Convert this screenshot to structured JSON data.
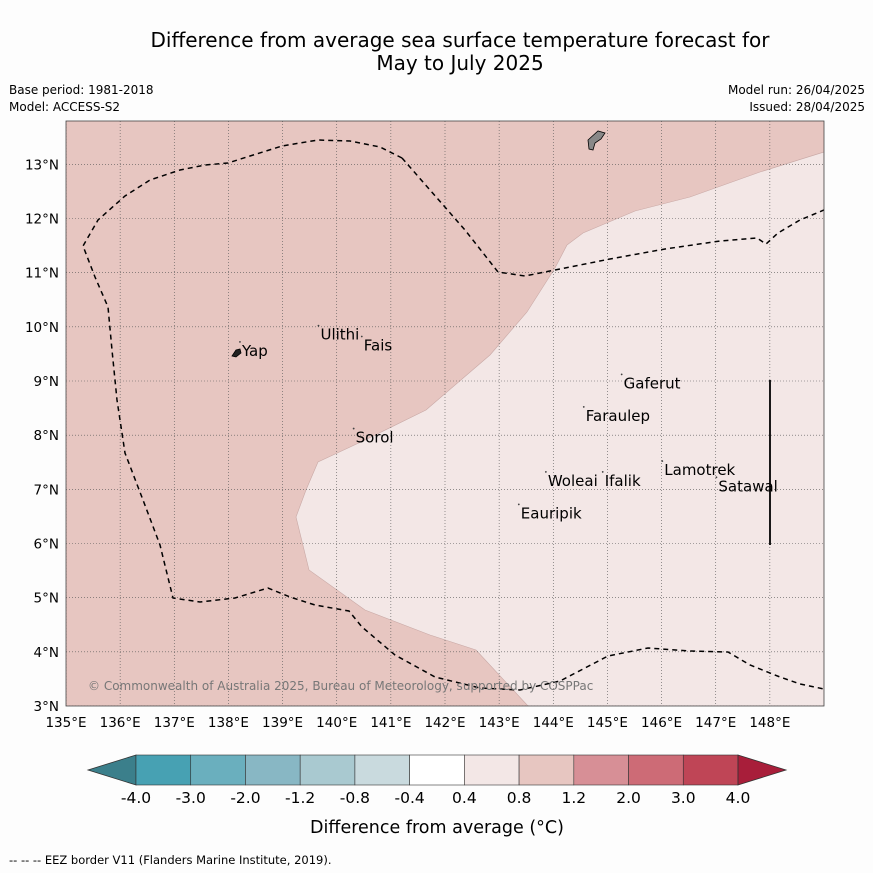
{
  "header": {
    "title_line1": "Difference from average sea surface temperature forecast for",
    "title_line2": "May to July 2025",
    "base_period": "Base period: 1981-2018",
    "model": "Model: ACCESS-S2",
    "model_run": "Model run: 26/04/2025",
    "issued": "Issued: 28/04/2025"
  },
  "map": {
    "lon_labels": [
      "135°E",
      "136°E",
      "137°E",
      "138°E",
      "139°E",
      "140°E",
      "141°E",
      "142°E",
      "143°E",
      "144°E",
      "145°E",
      "146°E",
      "147°E",
      "148°E"
    ],
    "lat_labels": [
      "3°N",
      "4°N",
      "5°N",
      "6°N",
      "7°N",
      "8°N",
      "9°N",
      "10°N",
      "11°N",
      "12°N",
      "13°N"
    ],
    "lon_range": [
      135,
      149
    ],
    "lat_range": [
      3,
      13.8
    ],
    "colors": {
      "warm_0_8_1_2": "#e7c6c1",
      "warm_0_4_0_8": "#f3e7e6"
    },
    "places": [
      {
        "name": "Yap",
        "lon": 138.25,
        "lat": 9.5
      },
      {
        "name": "Ulithi",
        "lon": 139.7,
        "lat": 9.8
      },
      {
        "name": "Fais",
        "lon": 140.5,
        "lat": 9.6
      },
      {
        "name": "Gaferut",
        "lon": 145.3,
        "lat": 8.9
      },
      {
        "name": "Faraulep",
        "lon": 144.6,
        "lat": 8.3
      },
      {
        "name": "Sorol",
        "lon": 140.35,
        "lat": 7.9
      },
      {
        "name": "Woleai",
        "lon": 143.9,
        "lat": 7.1
      },
      {
        "name": "Ifalik",
        "lon": 144.95,
        "lat": 7.1
      },
      {
        "name": "Lamotrek",
        "lon": 146.05,
        "lat": 7.3
      },
      {
        "name": "Satawal",
        "lon": 147.05,
        "lat": 7.0
      },
      {
        "name": "Eauripik",
        "lon": 143.4,
        "lat": 6.5
      }
    ],
    "copyright": "© Commonwealth of Australia 2025, Bureau of Meteorology, supported by COSPPac"
  },
  "colorbar": {
    "ticks": [
      "-4.0",
      "-3.0",
      "-2.0",
      "-1.2",
      "-0.8",
      "-0.4",
      "0.4",
      "0.8",
      "1.2",
      "2.0",
      "3.0",
      "4.0"
    ],
    "colors": [
      "#3b7f8b",
      "#47a1b3",
      "#6aafbe",
      "#88b7c4",
      "#a9c9d0",
      "#c9dade",
      "#ffffff",
      "#f3e7e6",
      "#e7c6c1",
      "#d78f96",
      "#cd6b76",
      "#bf4556",
      "#a81e3a"
    ],
    "label": "Difference from average (°C)"
  },
  "footer": "--  --  -- EEZ border V11 (Flanders Marine Institute, 2019)."
}
